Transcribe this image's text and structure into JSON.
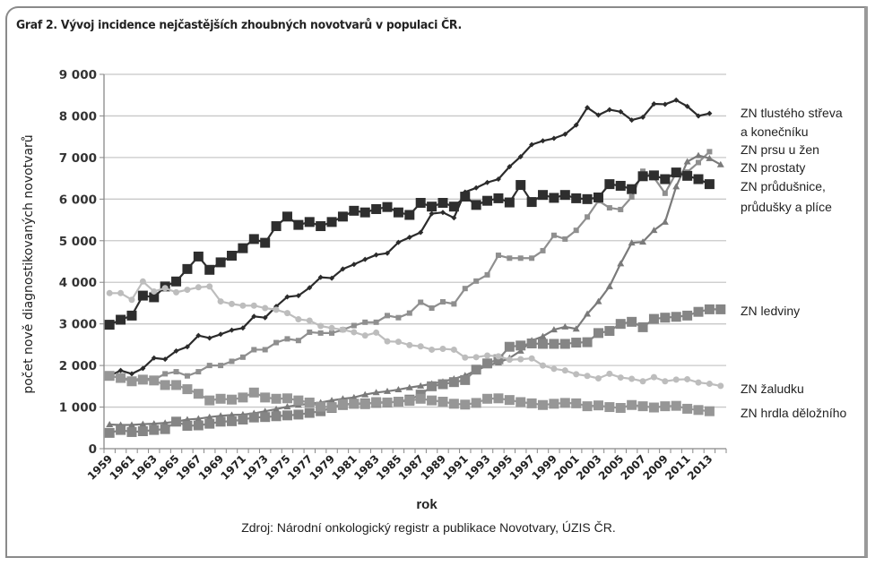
{
  "title": "Graf 2. Vývoj incidence nejčastějších zhoubných novotvarů v populaci ČR.",
  "source": "Zdroj: Národní onkologický registr a publikace Novotvary, ÚZIS ČR.",
  "chart_data": {
    "type": "line",
    "title": "Graf 2. Vývoj incidence nejčastějších zhoubných novotvarů v populaci ČR.",
    "xlabel": "rok",
    "ylabel": "počet nově diagnostikovaných novotvarů",
    "ylim": [
      0,
      9000
    ],
    "yticks": [
      "0",
      "1 000",
      "2 000",
      "3 000",
      "4 000",
      "5 000",
      "6 000",
      "7 000",
      "8 000",
      "9 000"
    ],
    "xticks": [
      "1959",
      "1961",
      "1963",
      "1965",
      "1967",
      "1969",
      "1971",
      "1973",
      "1975",
      "1977",
      "1979",
      "1981",
      "1983",
      "1985",
      "1987",
      "1989",
      "1991",
      "1993",
      "1995",
      "1997",
      "1999",
      "2001",
      "2003",
      "2005",
      "2007",
      "2009",
      "2011",
      "2013"
    ],
    "grid": true,
    "legend_position": "right",
    "x": [
      1959,
      1960,
      1961,
      1962,
      1963,
      1964,
      1965,
      1966,
      1967,
      1968,
      1969,
      1970,
      1971,
      1972,
      1973,
      1974,
      1975,
      1976,
      1977,
      1978,
      1979,
      1980,
      1981,
      1982,
      1983,
      1984,
      1985,
      1986,
      1987,
      1988,
      1989,
      1990,
      1991,
      1992,
      1993,
      1994,
      1995,
      1996,
      1997,
      1998,
      1999,
      2000,
      2001,
      2002,
      2003,
      2004,
      2005,
      2006,
      2007,
      2008,
      2009,
      2010,
      2011,
      2012,
      2013,
      2014
    ],
    "series": [
      {
        "name": "ZN tlustého střeva a konečníku",
        "legend": [
          "ZN tlustého střeva",
          "a konečníku"
        ],
        "color": "#2b2b2b",
        "marker": "diamond",
        "marker_size": "small",
        "values": [
          1750,
          1880,
          1800,
          1930,
          2180,
          2150,
          2350,
          2450,
          2720,
          2660,
          2750,
          2850,
          2900,
          3180,
          3150,
          3420,
          3650,
          3680,
          3870,
          4120,
          4100,
          4320,
          4430,
          4550,
          4660,
          4700,
          4960,
          5080,
          5200,
          5650,
          5680,
          5550,
          6170,
          6270,
          6400,
          6480,
          6780,
          7020,
          7310,
          7400,
          7460,
          7560,
          7780,
          8200,
          8020,
          8150,
          8100,
          7900,
          7970,
          8290,
          8280,
          8380,
          8230,
          8000,
          8060,
          null
        ]
      },
      {
        "name": "ZN prsu u žen",
        "legend": [
          "ZN prsu u žen"
        ],
        "color": "#8f8f8f",
        "marker": "square",
        "marker_size": "small",
        "values": [
          1740,
          1720,
          1640,
          1700,
          1660,
          1800,
          1850,
          1750,
          1850,
          2000,
          2000,
          2100,
          2200,
          2380,
          2380,
          2550,
          2640,
          2600,
          2800,
          2780,
          2780,
          2860,
          2960,
          3040,
          3040,
          3200,
          3150,
          3260,
          3520,
          3380,
          3530,
          3480,
          3850,
          4030,
          4180,
          4650,
          4580,
          4580,
          4580,
          4760,
          5130,
          5040,
          5250,
          5570,
          5960,
          5790,
          5750,
          6050,
          6670,
          6520,
          6140,
          6630,
          6650,
          6880,
          7140,
          null
        ]
      },
      {
        "name": "ZN prostaty",
        "legend": [
          "ZN prostaty"
        ],
        "color": "#7a7a7a",
        "marker": "triangle",
        "marker_size": "small",
        "values": [
          580,
          570,
          570,
          590,
          600,
          620,
          650,
          700,
          720,
          760,
          790,
          810,
          820,
          850,
          900,
          950,
          1010,
          1050,
          1080,
          1110,
          1160,
          1200,
          1230,
          1300,
          1350,
          1380,
          1420,
          1470,
          1510,
          1560,
          1610,
          1680,
          1760,
          1880,
          2000,
          2070,
          2180,
          2350,
          2600,
          2700,
          2860,
          2930,
          2880,
          3240,
          3540,
          3900,
          4450,
          4950,
          4970,
          5250,
          5450,
          6300,
          6900,
          7050,
          6980,
          6830
        ]
      },
      {
        "name": "ZN průdušnice, průdušky a plíce",
        "legend": [
          "ZN průdušnice,",
          "průdušky a plíce"
        ],
        "color": "#2e2e2e",
        "marker": "square",
        "marker_size": "large",
        "values": [
          2980,
          3100,
          3200,
          3680,
          3640,
          3900,
          4020,
          4320,
          4620,
          4300,
          4480,
          4640,
          4820,
          5040,
          4950,
          5350,
          5580,
          5380,
          5450,
          5350,
          5450,
          5580,
          5720,
          5680,
          5760,
          5810,
          5680,
          5620,
          5910,
          5820,
          5910,
          5820,
          6060,
          5860,
          5960,
          6020,
          5920,
          6340,
          5930,
          6100,
          6030,
          6100,
          6020,
          6000,
          6040,
          6360,
          6320,
          6240,
          6550,
          6570,
          6480,
          6640,
          6560,
          6480,
          6360,
          null
        ]
      },
      {
        "name": "ZN ledviny",
        "legend": [
          "ZN ledviny"
        ],
        "color": "#858585",
        "marker": "square",
        "marker_size": "large",
        "values": [
          380,
          450,
          400,
          420,
          450,
          470,
          650,
          550,
          560,
          600,
          650,
          660,
          700,
          750,
          760,
          780,
          800,
          820,
          860,
          900,
          980,
          1050,
          1080,
          1090,
          1100,
          1110,
          1130,
          1180,
          1300,
          1500,
          1550,
          1600,
          1650,
          1900,
          2050,
          2150,
          2450,
          2480,
          2530,
          2520,
          2520,
          2520,
          2550,
          2560,
          2780,
          2830,
          3000,
          3050,
          2920,
          3120,
          3150,
          3170,
          3200,
          3290,
          3350,
          3350
        ]
      },
      {
        "name": "ZN žaludku",
        "legend": [
          "ZN žaludku"
        ],
        "color": "#bdbdbd",
        "marker": "circle",
        "marker_size": "small",
        "values": [
          3740,
          3740,
          3580,
          4020,
          3780,
          3860,
          3760,
          3820,
          3880,
          3900,
          3540,
          3480,
          3440,
          3440,
          3380,
          3340,
          3260,
          3110,
          3080,
          2950,
          2900,
          2860,
          2800,
          2720,
          2790,
          2580,
          2570,
          2490,
          2460,
          2380,
          2400,
          2380,
          2190,
          2200,
          2240,
          2220,
          2140,
          2150,
          2170,
          2000,
          1920,
          1880,
          1790,
          1750,
          1690,
          1800,
          1710,
          1680,
          1620,
          1720,
          1620,
          1660,
          1670,
          1590,
          1560,
          1510
        ]
      },
      {
        "name": "ZN hrdla děložního",
        "legend": [
          "ZN hrdla děložního"
        ],
        "color": "#969696",
        "marker": "square",
        "marker_size": "large",
        "values": [
          1750,
          1700,
          1620,
          1660,
          1640,
          1530,
          1530,
          1430,
          1320,
          1160,
          1200,
          1180,
          1230,
          1350,
          1230,
          1200,
          1210,
          1160,
          1110,
          1010,
          1000,
          1070,
          1080,
          1070,
          1120,
          1110,
          1130,
          1150,
          1200,
          1160,
          1130,
          1080,
          1060,
          1100,
          1200,
          1210,
          1170,
          1120,
          1090,
          1050,
          1080,
          1100,
          1090,
          1020,
          1040,
          1000,
          980,
          1050,
          1020,
          990,
          1020,
          1030,
          960,
          930,
          900,
          null
        ]
      }
    ]
  }
}
